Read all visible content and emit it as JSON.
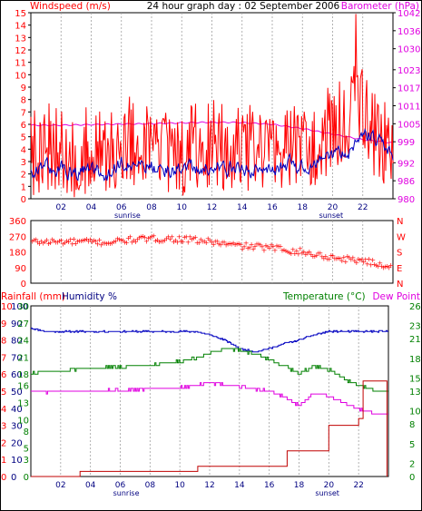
{
  "header": {
    "left_label": "Windspeed (m/s)",
    "title": "24 hour graph day : 02 September 2006",
    "right_label": "Barometer (hPa)"
  },
  "colors": {
    "frame": "#000000",
    "grid": "#a0a0a0",
    "red": "#ff0000",
    "blue": "#0000c0",
    "magenta": "#e000e0",
    "green": "#008000",
    "darkred": "#c00000",
    "navy": "#000080",
    "dot": "#ff0000"
  },
  "time_axis": {
    "ticks": [
      "02",
      "04",
      "06",
      "08",
      "10",
      "12",
      "14",
      "16",
      "18",
      "20",
      "22"
    ],
    "tick_hours": [
      2,
      4,
      6,
      8,
      10,
      12,
      14,
      16,
      18,
      20,
      22
    ],
    "range": [
      0,
      24
    ],
    "sunrise_label": "sunrise",
    "sunrise_hour": 6.4,
    "sunset_label": "sunset",
    "sunset_hour": 19.9
  },
  "chart_data": [
    {
      "type": "line",
      "title": "24 hour graph day : 02 September 2006",
      "ylabel": "Windspeed (m/s)",
      "y2label": "Barometer (hPa)",
      "ylim": [
        0,
        15
      ],
      "y2lim": [
        980,
        1042
      ],
      "yticks": [
        "0",
        "1",
        "2",
        "3",
        "4",
        "5",
        "6",
        "7",
        "8",
        "9",
        "10",
        "11",
        "12",
        "13",
        "14",
        "15"
      ],
      "y2ticks": [
        "980",
        "986",
        "992",
        "999",
        "1005",
        "1011",
        "1017",
        "1023",
        "1030",
        "1036",
        "1042"
      ],
      "series": [
        {
          "name": "Gust",
          "color": "#ff0000",
          "x": [
            0,
            1,
            2,
            3,
            4,
            5,
            6,
            7,
            8,
            9,
            10,
            11,
            12,
            13,
            14,
            15,
            16,
            17,
            18,
            19,
            20,
            21,
            22,
            23,
            24
          ],
          "y": [
            3.8,
            4.2,
            4.0,
            3.5,
            3.9,
            3.2,
            4.8,
            4.5,
            4.4,
            4.0,
            3.8,
            4.1,
            4.6,
            4.3,
            4.0,
            3.9,
            4.2,
            4.5,
            4.3,
            4.8,
            5.6,
            6.8,
            7.6,
            4.5,
            4.4
          ]
        },
        {
          "name": "Wind",
          "color": "#0000c0",
          "x": [
            0,
            1,
            2,
            3,
            4,
            5,
            6,
            7,
            8,
            9,
            10,
            11,
            12,
            13,
            14,
            15,
            16,
            17,
            18,
            19,
            20,
            21,
            22,
            23,
            24
          ],
          "y": [
            2.2,
            2.6,
            2.4,
            2.1,
            2.3,
            1.8,
            2.9,
            2.7,
            2.6,
            2.5,
            2.3,
            2.4,
            2.8,
            2.6,
            2.4,
            2.3,
            2.5,
            2.7,
            2.6,
            2.9,
            3.3,
            3.9,
            5.3,
            4.6,
            3.5
          ]
        },
        {
          "name": "Barometer",
          "color": "#e000e0",
          "axis": "y2",
          "x": [
            0,
            2,
            4,
            6,
            8,
            10,
            12,
            14,
            16,
            18,
            20,
            22,
            24
          ],
          "y": [
            1004.5,
            1004.5,
            1004.7,
            1004.9,
            1005.0,
            1005.3,
            1005.5,
            1005.4,
            1004.8,
            1003.4,
            1001.5,
            999.7,
            998.6
          ]
        }
      ]
    },
    {
      "type": "scatter",
      "ylabel": "Wind direction",
      "ylim": [
        0,
        360
      ],
      "yticks": [
        "0",
        "90",
        "180",
        "270",
        "360"
      ],
      "compass": [
        "N",
        "E",
        "S",
        "W",
        "N"
      ],
      "series": [
        {
          "name": "Direction",
          "color": "#ff0000",
          "x": [
            0,
            1,
            2,
            3,
            4,
            5,
            6,
            7,
            8,
            9,
            10,
            11,
            12,
            13,
            14,
            15,
            16,
            17,
            18,
            19,
            20,
            21,
            22,
            23,
            24
          ],
          "y": [
            240,
            240,
            240,
            240,
            240,
            235,
            245,
            255,
            255,
            258,
            255,
            248,
            240,
            225,
            215,
            212,
            205,
            195,
            180,
            165,
            150,
            140,
            135,
            110,
            100
          ]
        }
      ]
    },
    {
      "type": "line",
      "ylabels": [
        "Rainfall (mm)",
        "Humidity %",
        "Temperature (°C)",
        "Dew Point"
      ],
      "ylim_rain": [
        0,
        10
      ],
      "ylim_humidity": [
        0,
        100
      ],
      "ylim_temp": [
        0,
        30
      ],
      "ylim_right": [
        0,
        26
      ],
      "ticks_rain": [
        "0",
        "1",
        "2",
        "3",
        "4",
        "5",
        "6",
        "7",
        "8",
        "9",
        "10"
      ],
      "ticks_humidity": [
        "0",
        "10",
        "20",
        "30",
        "40",
        "50",
        "60",
        "70",
        "80",
        "90",
        "100"
      ],
      "ticks_temp": [
        "0",
        "3",
        "5",
        "8",
        "10",
        "13",
        "16",
        "18",
        "21",
        "24",
        "27",
        "30"
      ],
      "ticks_right": [
        "0",
        "2",
        "5",
        "8",
        "10",
        "13",
        "15",
        "18",
        "21",
        "23",
        "26"
      ],
      "series": [
        {
          "name": "Humidity",
          "axis": "humidity",
          "color": "#0000c0",
          "x": [
            0,
            1,
            2,
            4,
            6,
            8,
            10,
            11,
            12,
            13,
            14,
            15,
            16,
            17,
            18,
            19,
            20,
            21,
            22,
            23,
            24
          ],
          "y": [
            87,
            85,
            85,
            85,
            85,
            85,
            85,
            85,
            83,
            80,
            75,
            73,
            75,
            78,
            80,
            83,
            85,
            85,
            85,
            85,
            85
          ]
        },
        {
          "name": "Temperature",
          "axis": "temp",
          "color": "#008000",
          "x": [
            0,
            1,
            2,
            4,
            6,
            8,
            10,
            11,
            12,
            13,
            14,
            15,
            16,
            17,
            18,
            19,
            20,
            21,
            22,
            23,
            24
          ],
          "y": [
            18.2,
            18.4,
            18.6,
            19.0,
            19.3,
            19.6,
            20.2,
            20.8,
            21.6,
            22.6,
            22.2,
            21.6,
            20.6,
            19.4,
            18.2,
            19.4,
            18.8,
            17.2,
            16.0,
            15.1,
            15.0
          ]
        },
        {
          "name": "Dew Point",
          "axis": "temp",
          "color": "#e000e0",
          "x": [
            0,
            1,
            2,
            4,
            6,
            8,
            10,
            11,
            12,
            13,
            14,
            15,
            16,
            17,
            18,
            19,
            20,
            21,
            22,
            23,
            24
          ],
          "y": [
            15.0,
            14.8,
            14.9,
            15.0,
            15.2,
            15.4,
            15.6,
            16.0,
            16.4,
            16.2,
            15.8,
            15.4,
            15.0,
            14.0,
            12.4,
            14.6,
            14.2,
            13.0,
            11.8,
            11.2,
            11.0
          ]
        },
        {
          "name": "Rainfall",
          "axis": "rain",
          "color": "#c00000",
          "x": [
            0,
            1,
            3.3,
            11.2,
            17,
            17.2,
            19.8,
            20,
            22,
            22.3,
            23.5,
            23.9
          ],
          "y": [
            0,
            0,
            0.3,
            0.6,
            0.6,
            1.5,
            1.5,
            3.0,
            3.4,
            5.6,
            5.6,
            0
          ]
        }
      ]
    }
  ],
  "bottom_panel": {
    "rain_label": "Rainfall (mm)",
    "humidity_label": "Humidity %",
    "temp_label": "Temperature (°C)",
    "dew_label": "Dew Point"
  }
}
